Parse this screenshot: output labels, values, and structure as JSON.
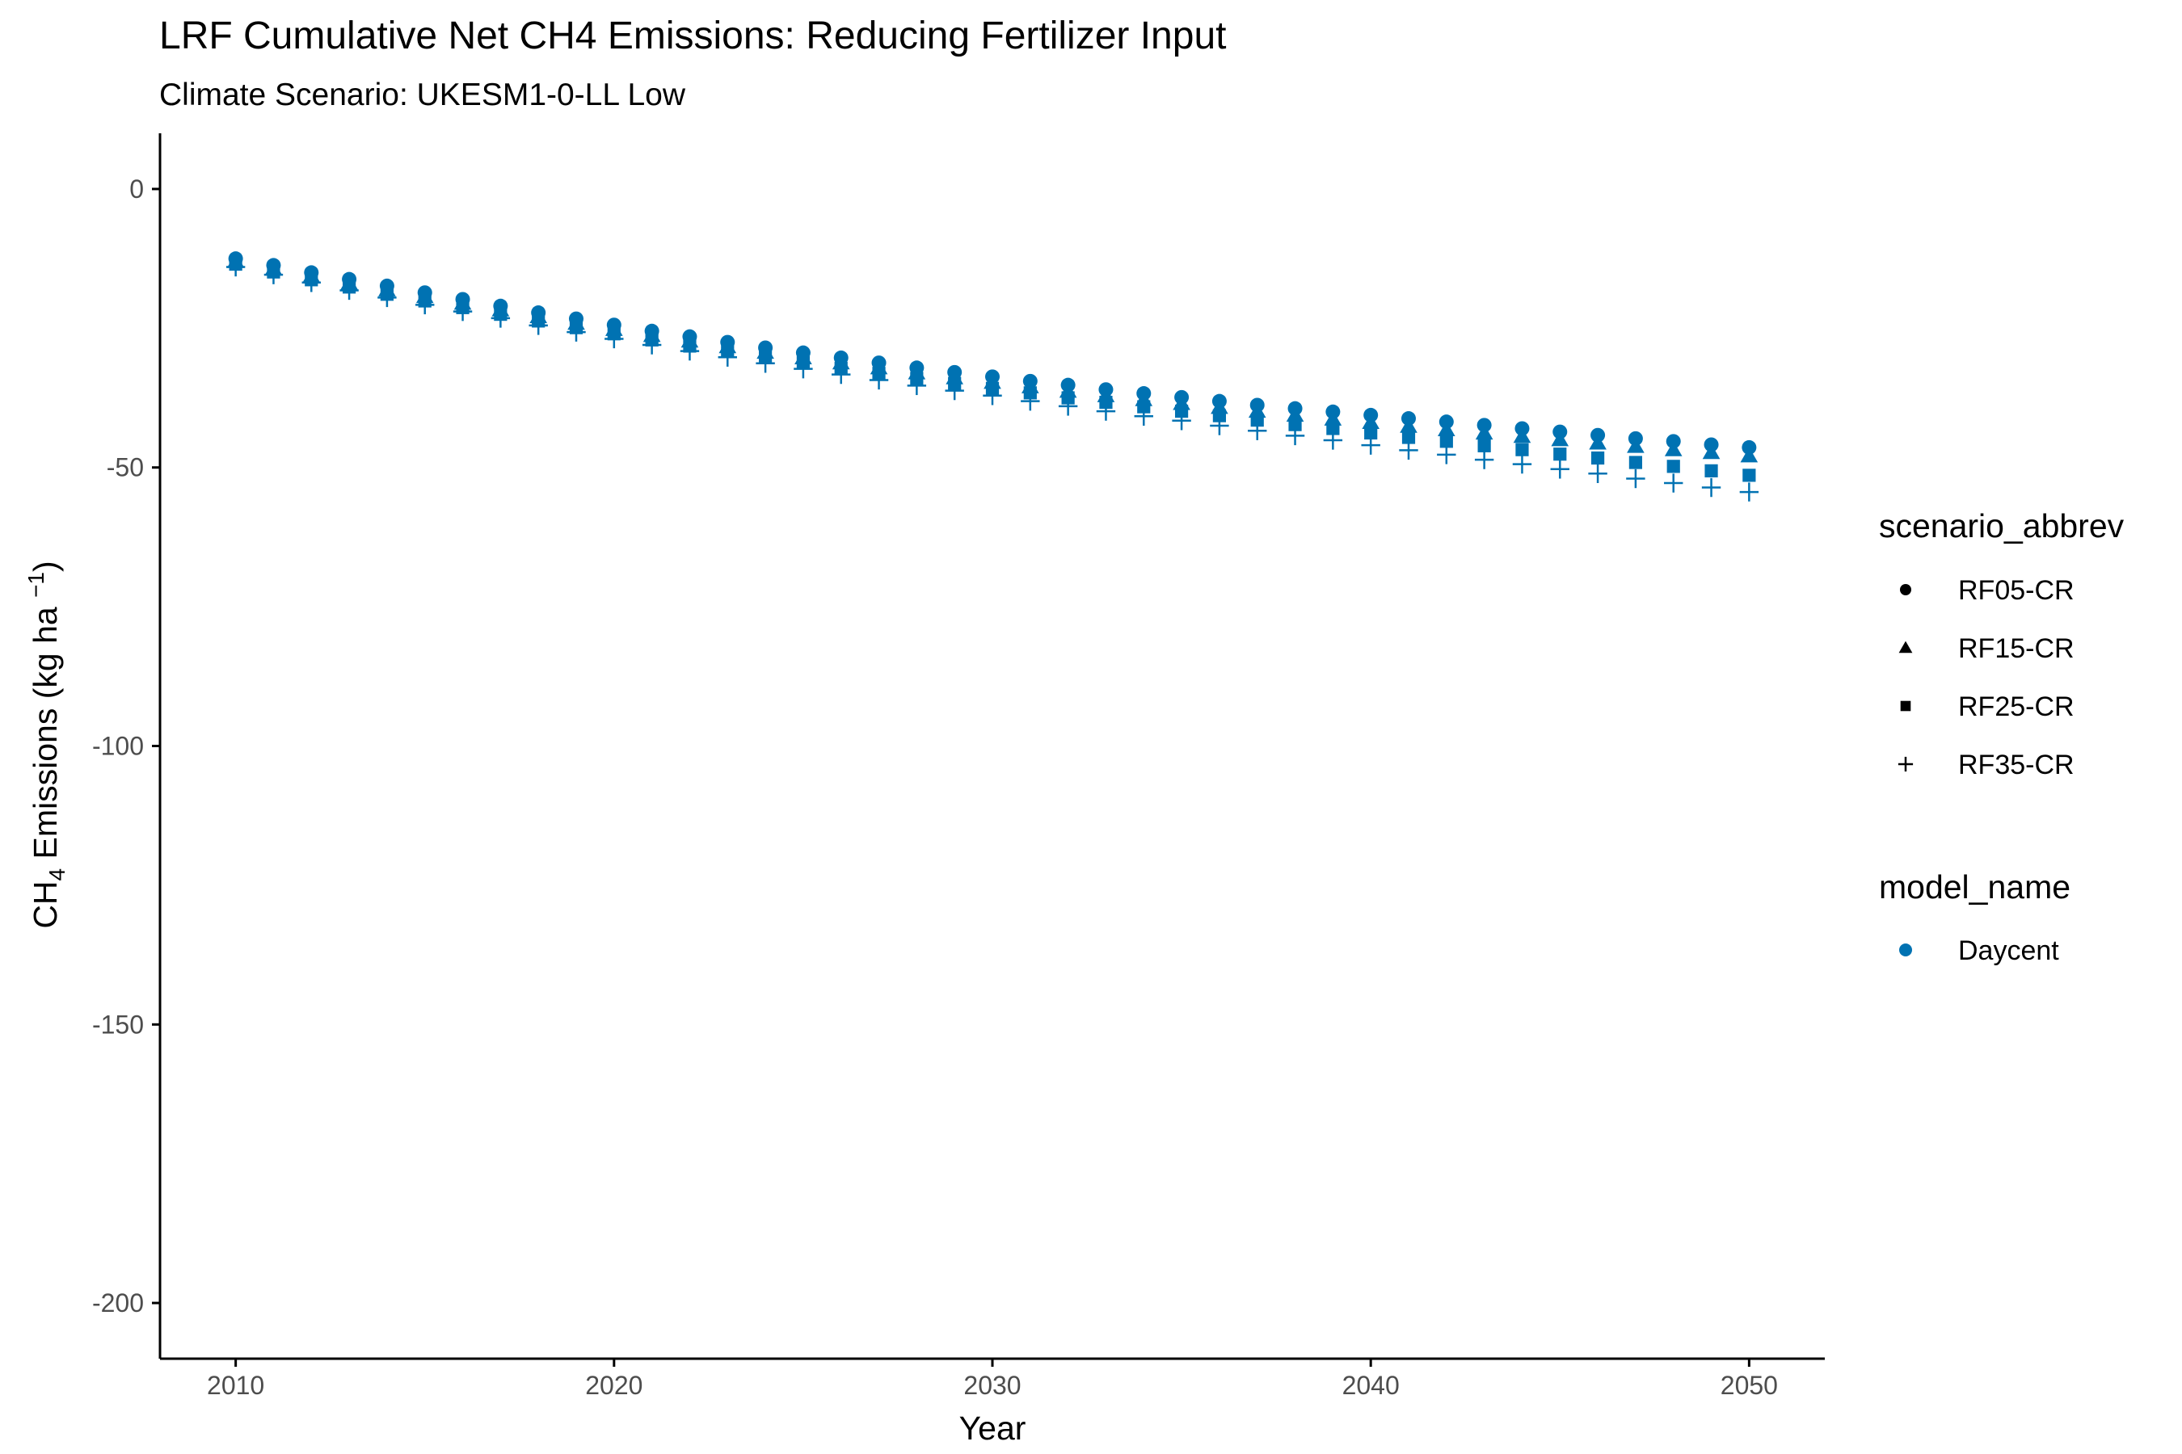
{
  "chart_data": {
    "type": "scatter",
    "title": "LRF  Cumulative Net CH4 Emissions: Reducing Fertilizer Input",
    "subtitle": "Climate Scenario: UKESM1-0-LL Low",
    "xlabel": "Year",
    "ylabel": {
      "pre": "CH",
      "sub": "4",
      "mid": " Emissions (kg ha ",
      "sup": "−1",
      "post": ")"
    },
    "xlim": [
      2008,
      2052
    ],
    "ylim": [
      -210,
      10
    ],
    "xticks": [
      2010,
      2020,
      2030,
      2040,
      2050
    ],
    "yticks": [
      0,
      -50,
      -100,
      -150,
      -200
    ],
    "color": "#0072B2",
    "grid": false,
    "legend_position": "right",
    "legend_shape": {
      "title": "scenario_abbrev",
      "items": [
        {
          "label": "RF05-CR",
          "shape": "circle"
        },
        {
          "label": "RF15-CR",
          "shape": "triangle"
        },
        {
          "label": "RF25-CR",
          "shape": "square"
        },
        {
          "label": "RF35-CR",
          "shape": "plus"
        }
      ]
    },
    "legend_color": {
      "title": "model_name",
      "items": [
        {
          "label": "Daycent",
          "color": "#0072B2"
        }
      ]
    },
    "x": [
      2010,
      2011,
      2012,
      2013,
      2014,
      2015,
      2016,
      2017,
      2018,
      2019,
      2020,
      2021,
      2022,
      2023,
      2024,
      2025,
      2026,
      2027,
      2028,
      2029,
      2030,
      2031,
      2032,
      2033,
      2034,
      2035,
      2036,
      2037,
      2038,
      2039,
      2040,
      2041,
      2042,
      2043,
      2044,
      2045,
      2046,
      2047,
      2048,
      2049,
      2050
    ],
    "series": [
      {
        "name": "RF05-CR",
        "shape": "circle",
        "model": "Daycent",
        "values": [
          -12.5,
          -13.7,
          -15.0,
          -16.2,
          -17.4,
          -18.6,
          -19.8,
          -21.0,
          -22.2,
          -23.3,
          -24.4,
          -25.5,
          -26.5,
          -27.5,
          -28.5,
          -29.4,
          -30.3,
          -31.2,
          -32.1,
          -32.9,
          -33.7,
          -34.5,
          -35.2,
          -36.0,
          -36.7,
          -37.4,
          -38.1,
          -38.8,
          -39.4,
          -40.0,
          -40.6,
          -41.2,
          -41.8,
          -42.4,
          -43.0,
          -43.6,
          -44.2,
          -44.8,
          -45.3,
          -45.9,
          -46.4
        ]
      },
      {
        "name": "RF15-CR",
        "shape": "triangle",
        "model": "Daycent",
        "values": [
          -13.0,
          -14.3,
          -15.6,
          -16.9,
          -18.1,
          -19.3,
          -20.5,
          -21.7,
          -22.9,
          -24.1,
          -25.2,
          -26.3,
          -27.3,
          -28.3,
          -29.3,
          -30.3,
          -31.2,
          -32.1,
          -33.0,
          -33.9,
          -34.7,
          -35.5,
          -36.3,
          -37.1,
          -37.8,
          -38.5,
          -39.2,
          -39.9,
          -40.6,
          -41.3,
          -41.9,
          -42.6,
          -43.2,
          -43.8,
          -44.4,
          -45.0,
          -45.6,
          -46.2,
          -46.8,
          -47.3,
          -47.9
        ]
      },
      {
        "name": "RF25-CR",
        "shape": "square",
        "model": "Daycent",
        "values": [
          -13.5,
          -14.9,
          -16.3,
          -17.6,
          -18.9,
          -20.1,
          -21.3,
          -22.5,
          -23.7,
          -24.9,
          -26.0,
          -27.1,
          -28.2,
          -29.2,
          -30.2,
          -31.2,
          -32.2,
          -33.1,
          -34.0,
          -34.9,
          -35.8,
          -36.6,
          -37.5,
          -38.3,
          -39.1,
          -39.9,
          -40.7,
          -41.5,
          -42.3,
          -43.0,
          -43.8,
          -44.6,
          -45.3,
          -46.1,
          -46.8,
          -47.6,
          -48.3,
          -49.1,
          -49.8,
          -50.6,
          -51.4
        ]
      },
      {
        "name": "RF35-CR",
        "shape": "plus",
        "model": "Daycent",
        "values": [
          -14.0,
          -15.4,
          -16.8,
          -18.2,
          -19.5,
          -20.8,
          -22.0,
          -23.2,
          -24.5,
          -25.7,
          -26.9,
          -28.0,
          -29.1,
          -30.2,
          -31.3,
          -32.3,
          -33.3,
          -34.3,
          -35.3,
          -36.2,
          -37.1,
          -38.1,
          -39.0,
          -39.9,
          -40.8,
          -41.6,
          -42.5,
          -43.4,
          -44.3,
          -45.1,
          -46.0,
          -46.9,
          -47.7,
          -48.6,
          -49.4,
          -50.3,
          -51.1,
          -52.0,
          -52.8,
          -53.6,
          -54.4
        ]
      }
    ]
  }
}
